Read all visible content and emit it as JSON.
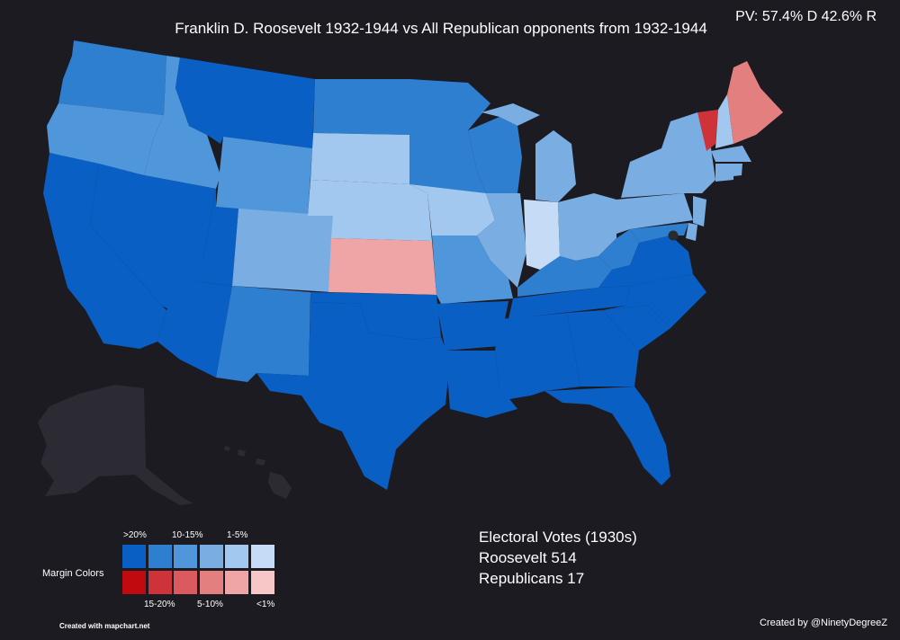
{
  "title": "Franklin D. Roosevelt 1932-1944 vs All Republican opponents from 1932-1944",
  "popular_vote": "PV: 57.4% D 42.6% R",
  "electoral": {
    "heading": "Electoral Votes (1930s)",
    "line1": "Roosevelt 514",
    "line2": "Republicans 17"
  },
  "legend": {
    "label": "Margin Colors",
    "top_labels": [
      ">20%",
      "10-15%",
      "1-5%"
    ],
    "bottom_labels": [
      "15-20%",
      "5-10%",
      "<1%"
    ],
    "dem_colors": [
      "#0a5fc4",
      "#2f7fd0",
      "#5096da",
      "#7aaee3",
      "#a3c8ef",
      "#c6dcf6"
    ],
    "rep_colors": [
      "#c00a10",
      "#cf333a",
      "#da5a5f",
      "#e3807f",
      "#efa5a6",
      "#f7c7c8"
    ]
  },
  "credits": {
    "left": "Created with mapchart.net",
    "right": "Created by @NinetyDegreeZ"
  },
  "colors": {
    "background": "#1c1b22",
    "alaska_hawaii": "#2c2b33",
    "d_gt20": "#0a5fc4",
    "d_15_20": "#2f7fd0",
    "d_10_15": "#5096da",
    "d_5_10": "#7aaee3",
    "d_1_5": "#a3c8ef",
    "r_15_20": "#cf333a",
    "r_5_10": "#e3807f",
    "r_1_5": "#efa5a6"
  }
}
